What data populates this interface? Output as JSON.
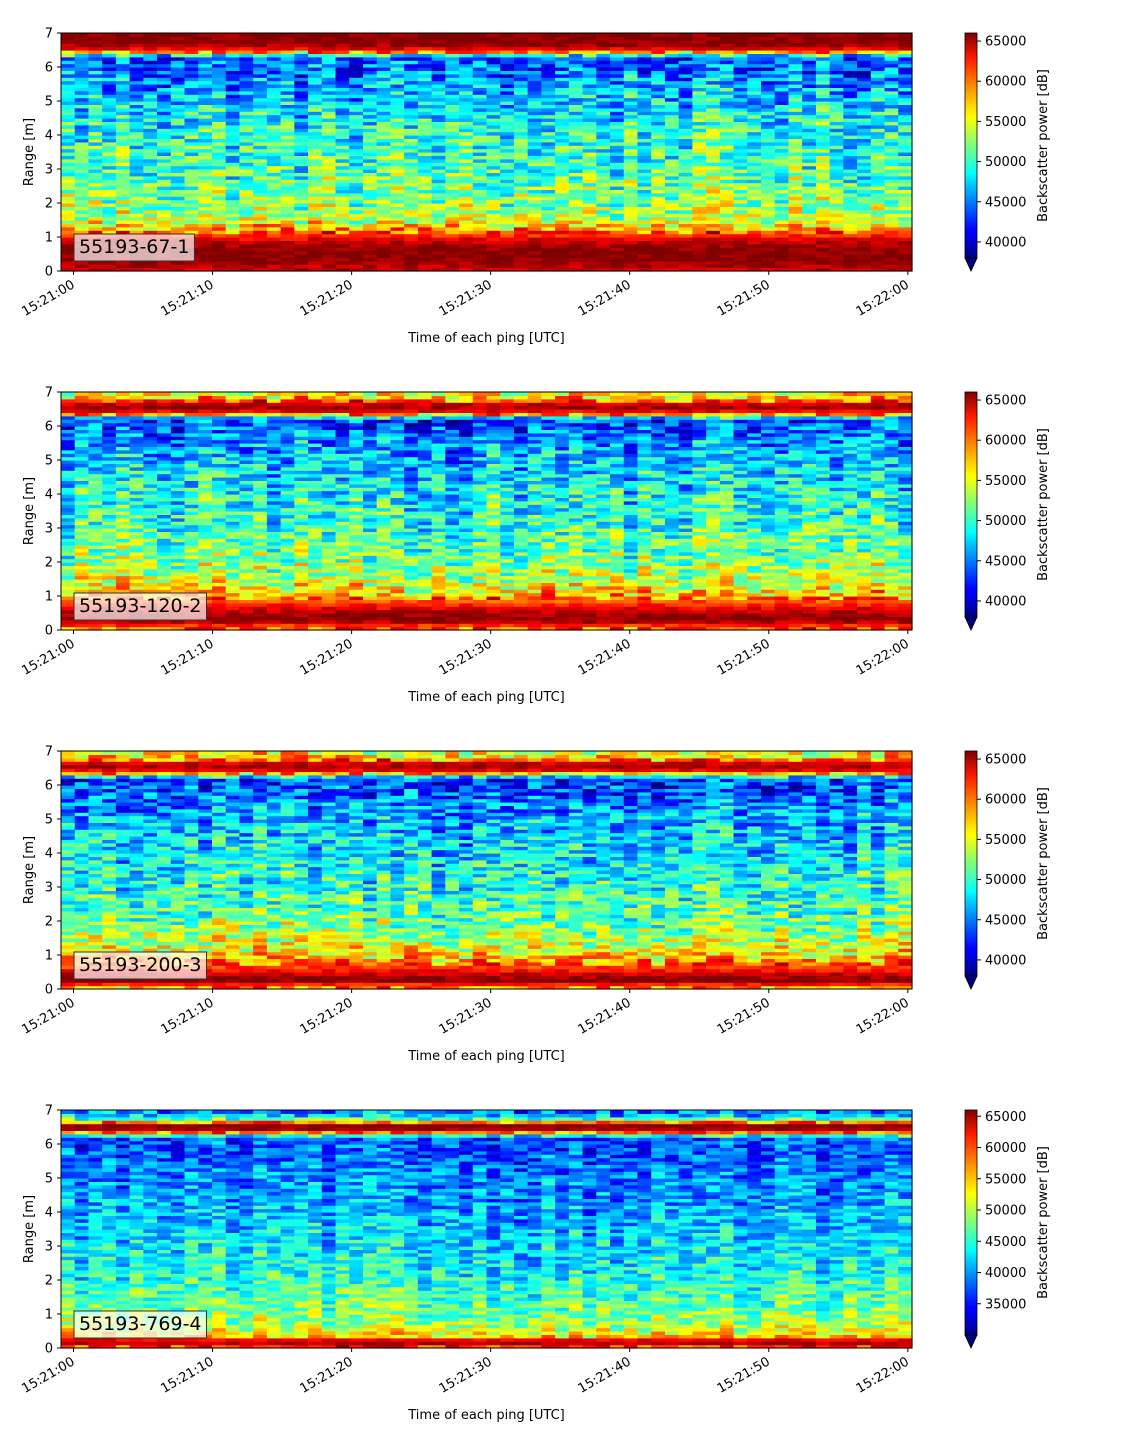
{
  "chart_data": [
    {
      "type": "heatmap",
      "panel_label": "55193-67-1",
      "xlabel": "Time of each ping [UTC]",
      "ylabel": "Range [m]",
      "ylim": [
        0,
        7
      ],
      "xlim": [
        "15:21:00",
        "15:22:00"
      ],
      "x_ticks": [
        "15:21:00",
        "15:21:10",
        "15:21:20",
        "15:21:30",
        "15:21:40",
        "15:21:50",
        "15:22:00"
      ],
      "y_ticks": [
        "0",
        "1",
        "2",
        "3",
        "4",
        "5",
        "6",
        "7"
      ],
      "colorbar": {
        "label": "Backscatter power [dB]",
        "min": 38000,
        "max": 66000,
        "ticks": [
          "40000",
          "45000",
          "50000",
          "55000",
          "60000",
          "65000"
        ],
        "tick_values": [
          40000,
          45000,
          50000,
          55000,
          60000,
          65000
        ],
        "colormap": "jet",
        "extend": "min"
      },
      "profile": {
        "range_m": [
          0.1,
          0.3,
          0.6,
          0.9,
          1.2,
          1.5,
          2.0,
          2.5,
          3.0,
          3.5,
          4.0,
          4.5,
          5.0,
          5.5,
          6.0,
          6.3,
          6.5,
          6.7,
          7.0
        ],
        "power": [
          64000,
          66000,
          66000,
          64000,
          59000,
          54000,
          52500,
          51500,
          50500,
          50000,
          49500,
          48500,
          47500,
          46000,
          44500,
          44000,
          62000,
          66000,
          66000
        ]
      }
    },
    {
      "type": "heatmap",
      "panel_label": "55193-120-2",
      "xlabel": "Time of each ping [UTC]",
      "ylabel": "Range [m]",
      "ylim": [
        0,
        7
      ],
      "xlim": [
        "15:21:00",
        "15:22:00"
      ],
      "x_ticks": [
        "15:21:00",
        "15:21:10",
        "15:21:20",
        "15:21:30",
        "15:21:40",
        "15:21:50",
        "15:22:00"
      ],
      "y_ticks": [
        "0",
        "1",
        "2",
        "3",
        "4",
        "5",
        "6",
        "7"
      ],
      "colorbar": {
        "label": "Backscatter power [dB]",
        "min": 38000,
        "max": 66000,
        "ticks": [
          "40000",
          "45000",
          "50000",
          "55000",
          "60000",
          "65000"
        ],
        "tick_values": [
          40000,
          45000,
          50000,
          55000,
          60000,
          65000
        ],
        "colormap": "jet",
        "extend": "min"
      },
      "profile": {
        "range_m": [
          0.1,
          0.3,
          0.5,
          0.8,
          1.0,
          1.3,
          1.7,
          2.2,
          3.0,
          4.0,
          5.0,
          5.8,
          6.2,
          6.4,
          6.6,
          6.8,
          7.0
        ],
        "power": [
          60000,
          66000,
          65000,
          61000,
          58000,
          55000,
          53000,
          51500,
          50000,
          48500,
          47000,
          44500,
          43000,
          62000,
          66000,
          58000,
          55000
        ]
      }
    },
    {
      "type": "heatmap",
      "panel_label": "55193-200-3",
      "xlabel": "Time of each ping [UTC]",
      "ylabel": "Range [m]",
      "ylim": [
        0,
        7
      ],
      "xlim": [
        "15:21:00",
        "15:22:00"
      ],
      "x_ticks": [
        "15:21:00",
        "15:21:10",
        "15:21:20",
        "15:21:30",
        "15:21:40",
        "15:21:50",
        "15:22:00"
      ],
      "y_ticks": [
        "0",
        "1",
        "2",
        "3",
        "4",
        "5",
        "6",
        "7"
      ],
      "colorbar": {
        "label": "Backscatter power [dB]",
        "min": 38000,
        "max": 66000,
        "ticks": [
          "40000",
          "45000",
          "50000",
          "55000",
          "60000",
          "65000"
        ],
        "tick_values": [
          40000,
          45000,
          50000,
          55000,
          60000,
          65000
        ],
        "colormap": "jet",
        "extend": "min"
      },
      "profile": {
        "range_m": [
          0.05,
          0.25,
          0.45,
          0.7,
          1.0,
          1.3,
          1.7,
          2.2,
          3.0,
          4.0,
          5.0,
          5.8,
          6.2,
          6.4,
          6.6,
          6.8,
          7.0
        ],
        "power": [
          58000,
          66000,
          64000,
          60000,
          57000,
          54500,
          52500,
          51000,
          49500,
          48000,
          46500,
          44000,
          43000,
          62000,
          66000,
          57000,
          55000
        ]
      }
    },
    {
      "type": "heatmap",
      "panel_label": "55193-769-4",
      "xlabel": "Time of each ping [UTC]",
      "ylabel": "Range [m]",
      "ylim": [
        0,
        7
      ],
      "xlim": [
        "15:21:00",
        "15:22:00"
      ],
      "x_ticks": [
        "15:21:00",
        "15:21:10",
        "15:21:20",
        "15:21:30",
        "15:21:40",
        "15:21:50",
        "15:22:00"
      ],
      "y_ticks": [
        "0",
        "1",
        "2",
        "3",
        "4",
        "5",
        "6",
        "7"
      ],
      "colorbar": {
        "label": "Backscatter power [dB]",
        "min": 30000,
        "max": 66000,
        "ticks": [
          "35000",
          "40000",
          "45000",
          "50000",
          "55000",
          "60000",
          "65000"
        ],
        "tick_values": [
          35000,
          40000,
          45000,
          50000,
          55000,
          60000,
          65000
        ],
        "colormap": "jet",
        "extend": "min"
      },
      "profile": {
        "range_m": [
          0.05,
          0.2,
          0.35,
          0.6,
          1.0,
          1.5,
          2.0,
          3.0,
          4.0,
          5.0,
          5.8,
          6.2,
          6.4,
          6.55,
          6.8,
          7.0
        ],
        "power": [
          60000,
          66000,
          54000,
          50000,
          48000,
          46000,
          44500,
          42500,
          40500,
          39000,
          37500,
          37000,
          64000,
          66000,
          42000,
          38000
        ]
      }
    }
  ]
}
